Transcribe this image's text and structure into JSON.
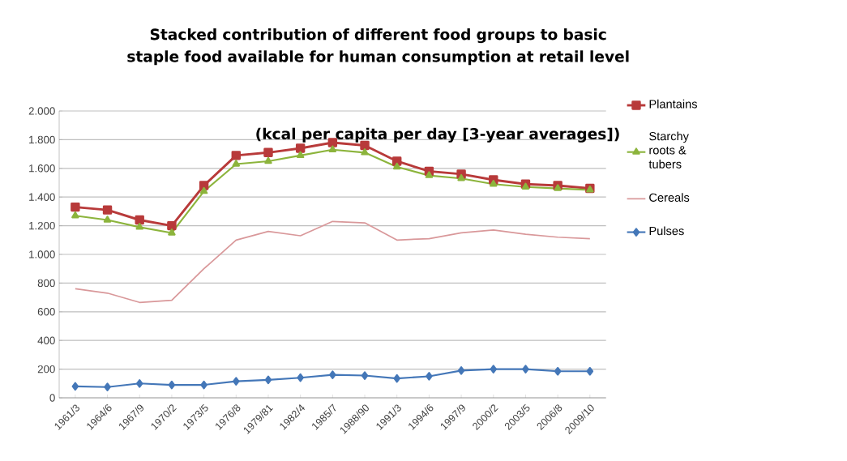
{
  "chart_data": {
    "type": "line",
    "title": "Stacked contribution of different food groups to basic staple food available for human consumption at retail level",
    "subtitle": "(kcal per capita per day [3-year averages])",
    "categories": [
      "1961/3",
      "1964/6",
      "1967/9",
      "1970/2",
      "1973/5",
      "1976/8",
      "1979/81",
      "1982/4",
      "1985/7",
      "1988/90",
      "1991/3",
      "1994/6",
      "1997/9",
      "2000/2",
      "2003/5",
      "2006/8",
      "2009/10"
    ],
    "series": [
      {
        "name": "Plantains",
        "color": "#b83a3a",
        "marker": "square",
        "values": [
          1330,
          1310,
          1240,
          1200,
          1480,
          1690,
          1710,
          1740,
          1780,
          1760,
          1650,
          1580,
          1560,
          1520,
          1490,
          1480,
          1460
        ]
      },
      {
        "name": "Starchy roots & tubers",
        "color": "#8cb43c",
        "marker": "triangle",
        "values": [
          1270,
          1240,
          1190,
          1150,
          1440,
          1630,
          1650,
          1690,
          1730,
          1710,
          1610,
          1550,
          1530,
          1490,
          1470,
          1460,
          1450
        ]
      },
      {
        "name": "Cereals",
        "color": "#d9989a",
        "marker": "none",
        "values": [
          760,
          730,
          665,
          680,
          900,
          1100,
          1160,
          1130,
          1230,
          1220,
          1100,
          1110,
          1150,
          1170,
          1140,
          1120,
          1110
        ]
      },
      {
        "name": "Pulses",
        "color": "#4477b8",
        "marker": "diamond",
        "values": [
          80,
          75,
          100,
          90,
          90,
          115,
          125,
          140,
          160,
          155,
          135,
          150,
          190,
          200,
          200,
          185,
          185
        ]
      }
    ],
    "ylim": [
      0,
      2000
    ],
    "yticks": [
      0,
      200,
      400,
      600,
      800,
      {
        "value": 1000,
        "label": "1.000"
      },
      {
        "value": 1200,
        "label": "1.200"
      },
      {
        "value": 1400,
        "label": "1.400"
      },
      {
        "value": 1600,
        "label": "1.600"
      },
      {
        "value": 1800,
        "label": "1.800"
      },
      {
        "value": 2000,
        "label": "2.000"
      }
    ],
    "grid": "y",
    "legend": "right"
  }
}
